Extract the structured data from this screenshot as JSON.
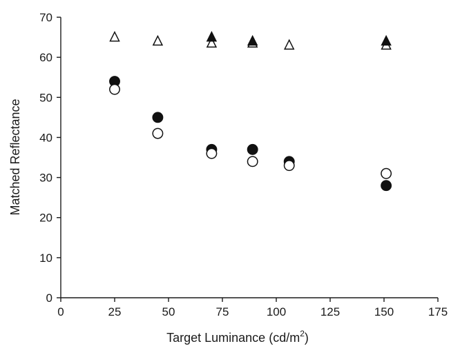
{
  "chart_data": {
    "type": "scatter",
    "title": "",
    "xlabel": "Target Luminance (cd/m",
    "xlabel_superscript": "2",
    "xlabel_suffix": ")",
    "ylabel": "Matched Reflectance",
    "xlim": [
      0,
      175
    ],
    "ylim": [
      0,
      70
    ],
    "x_ticks": [
      0,
      25,
      50,
      75,
      100,
      125,
      150,
      175
    ],
    "y_ticks": [
      0,
      10,
      20,
      30,
      40,
      50,
      60,
      70
    ],
    "grid": false,
    "legend": "none",
    "series": [
      {
        "marker": "filled-circle",
        "color": "#111111",
        "points": [
          [
            25,
            54
          ],
          [
            45,
            45
          ],
          [
            70,
            37
          ],
          [
            89,
            37
          ],
          [
            106,
            34
          ],
          [
            151,
            28
          ]
        ]
      },
      {
        "marker": "open-circle",
        "color": "#111111",
        "points": [
          [
            25,
            52
          ],
          [
            45,
            41
          ],
          [
            70,
            36
          ],
          [
            89,
            34
          ],
          [
            106,
            33
          ],
          [
            151,
            31
          ]
        ]
      },
      {
        "marker": "filled-triangle",
        "color": "#111111",
        "points": [
          [
            70,
            65
          ],
          [
            89,
            64
          ],
          [
            151,
            64
          ]
        ]
      },
      {
        "marker": "open-triangle",
        "color": "#111111",
        "points": [
          [
            25,
            65
          ],
          [
            45,
            64
          ],
          [
            70,
            63.5
          ],
          [
            89,
            63.5
          ],
          [
            106,
            63
          ],
          [
            151,
            63
          ]
        ]
      }
    ]
  }
}
